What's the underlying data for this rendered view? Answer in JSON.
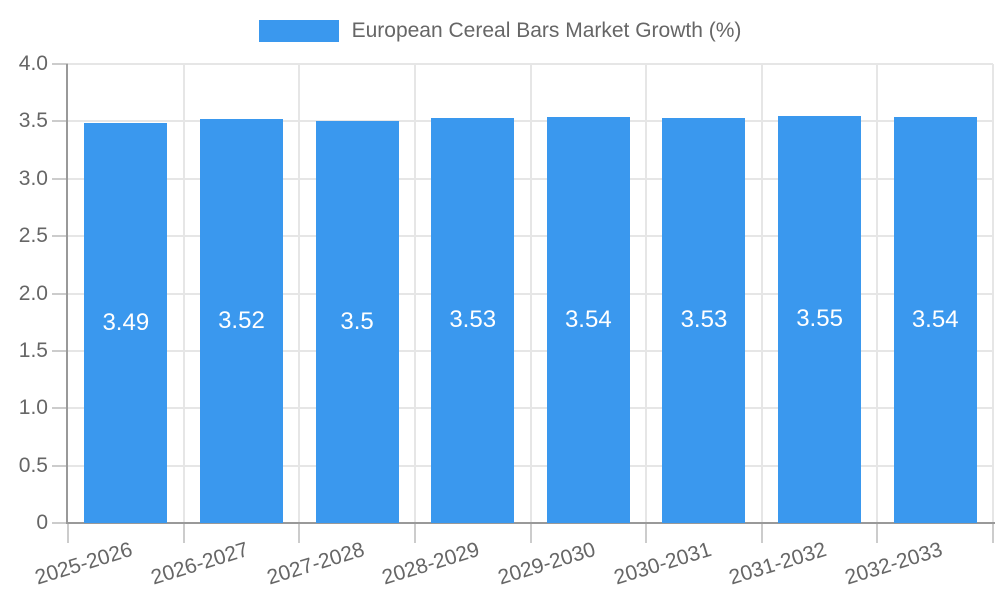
{
  "legend": {
    "label": "European Cereal Bars Market Growth (%)"
  },
  "colors": {
    "bar": "#3a98ee",
    "axis_line": "#999999",
    "tick": "#cccccc",
    "grid": "#e6e6e6",
    "label_text": "#666666",
    "bar_value_text": "#ffffff",
    "background": "#ffffff"
  },
  "chart_data": {
    "type": "bar",
    "title": "European Cereal Bars Market Growth (%)",
    "categories": [
      "2025-2026",
      "2026-2027",
      "2027-2028",
      "2028-2029",
      "2029-2030",
      "2030-2031",
      "2031-2032",
      "2032-2033"
    ],
    "values": [
      3.49,
      3.52,
      3.5,
      3.53,
      3.54,
      3.53,
      3.55,
      3.54
    ],
    "bar_value_labels": [
      "3.49",
      "3.52",
      "3.5",
      "3.53",
      "3.54",
      "3.53",
      "3.55",
      "3.54"
    ],
    "xlabel": "",
    "ylabel": "",
    "ylim": [
      0,
      4.0
    ],
    "ytick_step": 0.5,
    "ytick_labels": [
      "0",
      "0.5",
      "1.0",
      "1.5",
      "2.0",
      "2.5",
      "3.0",
      "3.5",
      "4.0"
    ],
    "grid": true,
    "legend_position": "top-center",
    "bar_labels_inside": true,
    "x_labels_rotation_deg": -17
  }
}
